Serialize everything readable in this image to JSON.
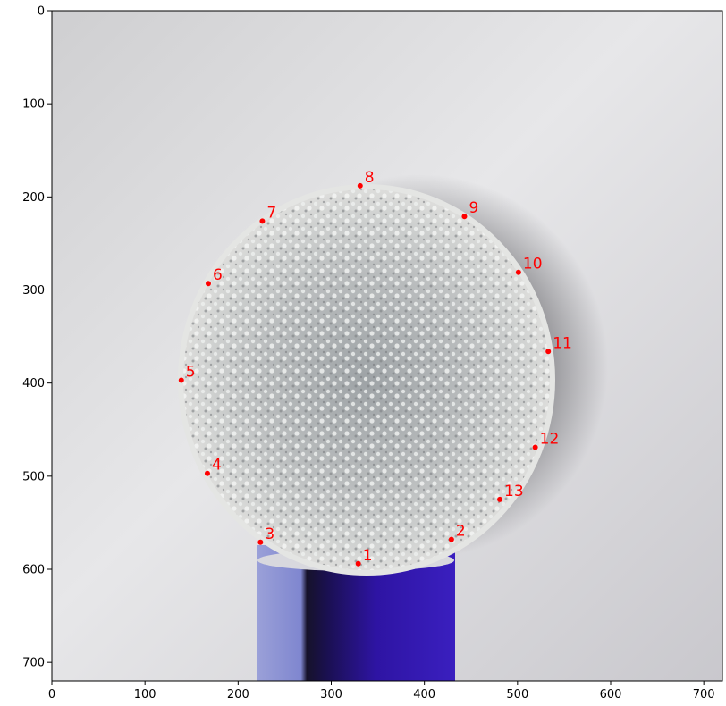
{
  "chart_data": {
    "type": "scatter",
    "title": "",
    "xlabel": "",
    "ylabel": "",
    "xlim": [
      0,
      720
    ],
    "ylim": [
      720,
      0
    ],
    "x_ticks": [
      0,
      100,
      200,
      300,
      400,
      500,
      600,
      700
    ],
    "y_ticks": [
      0,
      100,
      200,
      300,
      400,
      500,
      600,
      700
    ],
    "grid": false,
    "background_image": "photo of a glittery crystal ball resting on a blue can against a white wall",
    "marker_color": "#ff0000",
    "points": [
      {
        "label": "1",
        "x": 329,
        "y": 594
      },
      {
        "label": "2",
        "x": 429,
        "y": 568
      },
      {
        "label": "3",
        "x": 224,
        "y": 571
      },
      {
        "label": "4",
        "x": 167,
        "y": 497
      },
      {
        "label": "5",
        "x": 139,
        "y": 397
      },
      {
        "label": "6",
        "x": 168,
        "y": 293
      },
      {
        "label": "7",
        "x": 226,
        "y": 226
      },
      {
        "label": "8",
        "x": 331,
        "y": 188
      },
      {
        "label": "9",
        "x": 443,
        "y": 221
      },
      {
        "label": "10",
        "x": 501,
        "y": 281
      },
      {
        "label": "11",
        "x": 533,
        "y": 366
      },
      {
        "label": "12",
        "x": 519,
        "y": 469
      },
      {
        "label": "13",
        "x": 481,
        "y": 525
      }
    ]
  }
}
